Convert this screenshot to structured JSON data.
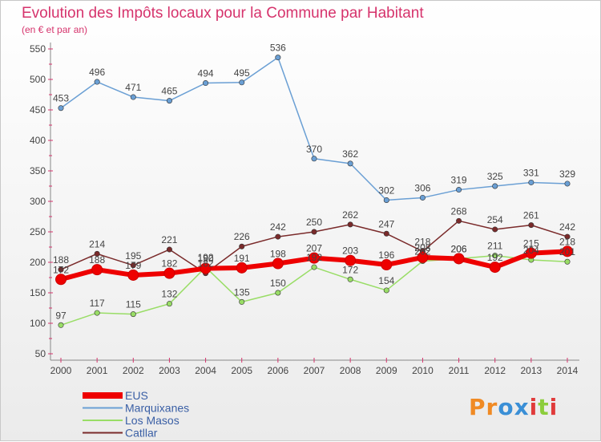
{
  "header": {
    "title": "Evolution des Impôts locaux pour la Commune par Habitant",
    "subtitle": "(en € et par an)"
  },
  "logo": {
    "text": "Proxiti",
    "colors": [
      "#f08a24",
      "#f08a24",
      "#3a8fd6",
      "#3a8fd6",
      "#e03b3b",
      "#8ccd3c",
      "#e03b3b"
    ]
  },
  "chart_data": {
    "type": "line",
    "x": [
      2000,
      2001,
      2002,
      2003,
      2004,
      2005,
      2006,
      2007,
      2008,
      2009,
      2010,
      2011,
      2012,
      2013,
      2014
    ],
    "ylim": [
      50,
      550
    ],
    "yticks": [
      50,
      100,
      150,
      200,
      250,
      300,
      350,
      400,
      450,
      500,
      550
    ],
    "grid": false,
    "legend_position": "bottom-left",
    "series": [
      {
        "name": "EUS",
        "color": "#ee0000",
        "values": [
          172,
          188,
          179,
          182,
          190,
          191,
          198,
          207,
          203,
          196,
          208,
          206,
          192,
          215,
          218
        ]
      },
      {
        "name": "Marquixanes",
        "color": "#6a9fd4",
        "values": [
          453,
          496,
          471,
          465,
          494,
          495,
          536,
          370,
          362,
          302,
          306,
          319,
          325,
          331,
          329
        ]
      },
      {
        "name": "Los Masos",
        "color": "#99dd66",
        "values": [
          97,
          117,
          115,
          132,
          192,
          135,
          150,
          192,
          172,
          154,
          202,
          206,
          211,
          204,
          201
        ]
      },
      {
        "name": "Catllar",
        "color": "#7a2a2a",
        "values": [
          188,
          214,
          195,
          221,
          182,
          226,
          242,
          250,
          262,
          247,
          218,
          268,
          254,
          261,
          242
        ]
      }
    ]
  }
}
